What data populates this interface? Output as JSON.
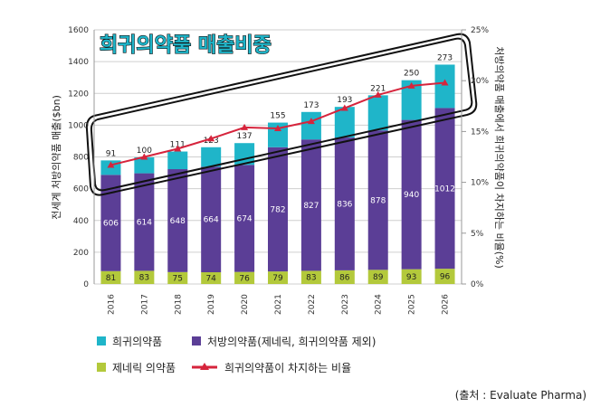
{
  "chart_data": {
    "type": "bar",
    "title": "희귀의약품 매출비중",
    "categories": [
      "2016",
      "2017",
      "2018",
      "2019",
      "2020",
      "2021",
      "2022",
      "2023",
      "2024",
      "2025",
      "2026"
    ],
    "stacked": true,
    "series": [
      {
        "name": "제네릭 의약품",
        "values": [
          81,
          83,
          75,
          74,
          76,
          79,
          83,
          86,
          89,
          93,
          96
        ],
        "color": "#b3c93b"
      },
      {
        "name": "처방의약품(제네릭, 희귀의약품 제외)",
        "values": [
          606,
          614,
          648,
          664,
          674,
          782,
          827,
          836,
          878,
          940,
          1012
        ],
        "color": "#5b3e96"
      },
      {
        "name": "희귀의약품",
        "values": [
          91,
          100,
          111,
          123,
          137,
          155,
          173,
          193,
          221,
          250,
          273
        ],
        "color": "#1fb5c9"
      }
    ],
    "line": {
      "name": "희귀의약품이 차지하는 비율",
      "axis": "right",
      "values": [
        11.7,
        12.5,
        13.3,
        14.3,
        15.4,
        15.3,
        16.0,
        17.3,
        18.6,
        19.5,
        19.8
      ],
      "color": "#d6243c"
    },
    "ylabel": "전세계 처방의약품 매출($bn)",
    "ylabel_right": "처방의약품 매출에서 희귀의약품이 차지하는 비율(%)",
    "ylim": [
      0,
      1600
    ],
    "yticks": [
      "0",
      "200",
      "400",
      "600",
      "800",
      "1000",
      "1200",
      "1400",
      "1600"
    ],
    "ylim_right": [
      0,
      25
    ],
    "yticks_right": [
      "0%",
      "5%",
      "10%",
      "15%",
      "20%",
      "25%"
    ],
    "grid": true,
    "legend_position": "bottom",
    "source": "(출처 : Evaluate Pharma)"
  }
}
